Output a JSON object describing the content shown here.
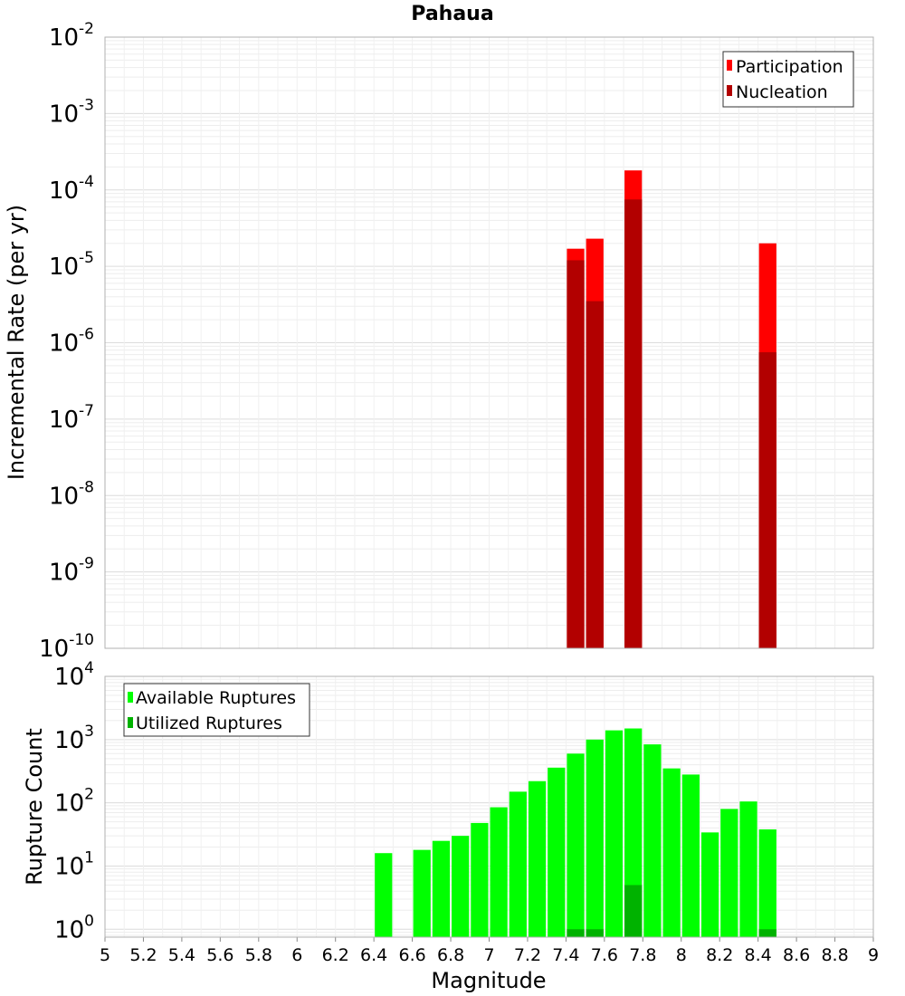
{
  "chart_data": [
    {
      "type": "bar",
      "title": "Pahaua",
      "xlabel": "",
      "ylabel": "Incremental Rate (per yr)",
      "y_scale": "log",
      "ylim": [
        1e-10,
        0.01
      ],
      "xlim": [
        5,
        9
      ],
      "y_ticks": [
        {
          "base": "10",
          "exp": "-10"
        },
        {
          "base": "10",
          "exp": "-9"
        },
        {
          "base": "10",
          "exp": "-8"
        },
        {
          "base": "10",
          "exp": "-7"
        },
        {
          "base": "10",
          "exp": "-6"
        },
        {
          "base": "10",
          "exp": "-5"
        },
        {
          "base": "10",
          "exp": "-4"
        },
        {
          "base": "10",
          "exp": "-3"
        },
        {
          "base": "10",
          "exp": "-2"
        }
      ],
      "legend_position": "top-right",
      "bar_width": 0.1,
      "series": [
        {
          "name": "Participation",
          "color": "#ff0000",
          "x": [
            7.45,
            7.55,
            7.75,
            8.45
          ],
          "values": [
            1.7e-05,
            2.3e-05,
            0.00018,
            2e-05
          ]
        },
        {
          "name": "Nucleation",
          "color": "#b20000",
          "x": [
            7.45,
            7.55,
            7.75,
            8.45
          ],
          "values": [
            1.2e-05,
            3.5e-06,
            7.5e-05,
            7.5e-07
          ]
        }
      ]
    },
    {
      "type": "bar",
      "xlabel": "Magnitude",
      "ylabel": "Rupture Count",
      "y_scale": "log",
      "ylim": [
        0.75,
        10000
      ],
      "xlim": [
        5,
        9
      ],
      "x_ticks": [
        "5",
        "5.2",
        "5.4",
        "5.6",
        "5.8",
        "6",
        "6.2",
        "6.4",
        "6.6",
        "6.8",
        "7",
        "7.2",
        "7.4",
        "7.6",
        "7.8",
        "8",
        "8.2",
        "8.4",
        "8.6",
        "8.8",
        "9"
      ],
      "y_ticks": [
        {
          "base": "10",
          "exp": "0"
        },
        {
          "base": "10",
          "exp": "1"
        },
        {
          "base": "10",
          "exp": "2"
        },
        {
          "base": "10",
          "exp": "3"
        },
        {
          "base": "10",
          "exp": "4"
        }
      ],
      "legend_position": "top-left",
      "bar_width": 0.1,
      "series": [
        {
          "name": "Available Ruptures",
          "color": "#00ff00",
          "x": [
            6.45,
            6.65,
            6.75,
            6.85,
            6.95,
            7.05,
            7.15,
            7.25,
            7.35,
            7.45,
            7.55,
            7.65,
            7.75,
            7.85,
            7.95,
            8.05,
            8.15,
            8.25,
            8.35,
            8.45
          ],
          "values": [
            16,
            18,
            25,
            30,
            48,
            85,
            150,
            220,
            360,
            600,
            1000,
            1400,
            1500,
            840,
            350,
            280,
            34,
            80,
            105,
            38
          ]
        },
        {
          "name": "Utilized Ruptures",
          "color": "#00b200",
          "x": [
            7.45,
            7.55,
            7.75,
            8.45
          ],
          "values": [
            1,
            1,
            5,
            1
          ]
        }
      ]
    }
  ]
}
